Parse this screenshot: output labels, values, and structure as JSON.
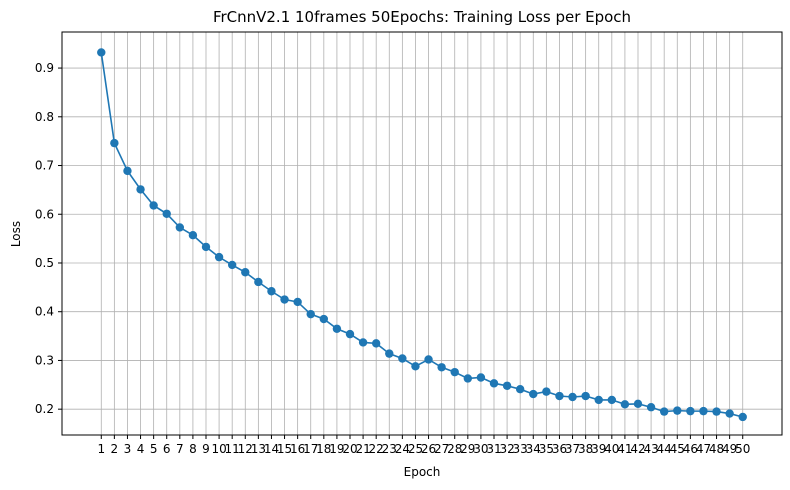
{
  "chart_data": {
    "type": "line",
    "title": "FrCnnV2.1 10frames 50Epochs: Training Loss per Epoch",
    "xlabel": "Epoch",
    "ylabel": "Loss",
    "x": [
      1,
      2,
      3,
      4,
      5,
      6,
      7,
      8,
      9,
      10,
      11,
      12,
      13,
      14,
      15,
      16,
      17,
      18,
      19,
      20,
      21,
      22,
      23,
      24,
      25,
      26,
      27,
      28,
      29,
      30,
      31,
      32,
      33,
      34,
      35,
      36,
      37,
      38,
      39,
      40,
      41,
      42,
      43,
      44,
      45,
      46,
      47,
      48,
      49,
      50
    ],
    "xtick_labels": [
      "1",
      "2",
      "3",
      "4",
      "5",
      "6",
      "7",
      "8",
      "9",
      "10",
      "11",
      "12",
      "13",
      "14",
      "15",
      "16",
      "17",
      "18",
      "19",
      "20",
      "21",
      "22",
      "23",
      "24",
      "25",
      "26",
      "27",
      "28",
      "29",
      "30",
      "31",
      "32",
      "33",
      "34",
      "35",
      "36",
      "37",
      "38",
      "39",
      "40",
      "41",
      "42",
      "43",
      "44",
      "45",
      "46",
      "47",
      "48",
      "49",
      "50"
    ],
    "yticks": [
      0.2,
      0.3,
      0.4,
      0.5,
      0.6,
      0.7,
      0.8,
      0.9
    ],
    "ytick_labels": [
      "0.2",
      "0.3",
      "0.4",
      "0.5",
      "0.6",
      "0.7",
      "0.8",
      "0.9"
    ],
    "xlim": [
      -2.0,
      53.0
    ],
    "ylim": [
      0.147,
      0.974
    ],
    "grid": true,
    "series": [
      {
        "color": "#1f77b4",
        "marker": "circle",
        "values": [
          0.932,
          0.746,
          0.689,
          0.651,
          0.618,
          0.601,
          0.573,
          0.557,
          0.533,
          0.512,
          0.496,
          0.481,
          0.461,
          0.442,
          0.425,
          0.42,
          0.395,
          0.385,
          0.365,
          0.354,
          0.337,
          0.335,
          0.314,
          0.304,
          0.288,
          0.302,
          0.286,
          0.276,
          0.263,
          0.265,
          0.253,
          0.248,
          0.241,
          0.231,
          0.236,
          0.227,
          0.225,
          0.227,
          0.219,
          0.219,
          0.21,
          0.211,
          0.204,
          0.195,
          0.197,
          0.196,
          0.196,
          0.195,
          0.191,
          0.184
        ]
      }
    ]
  }
}
